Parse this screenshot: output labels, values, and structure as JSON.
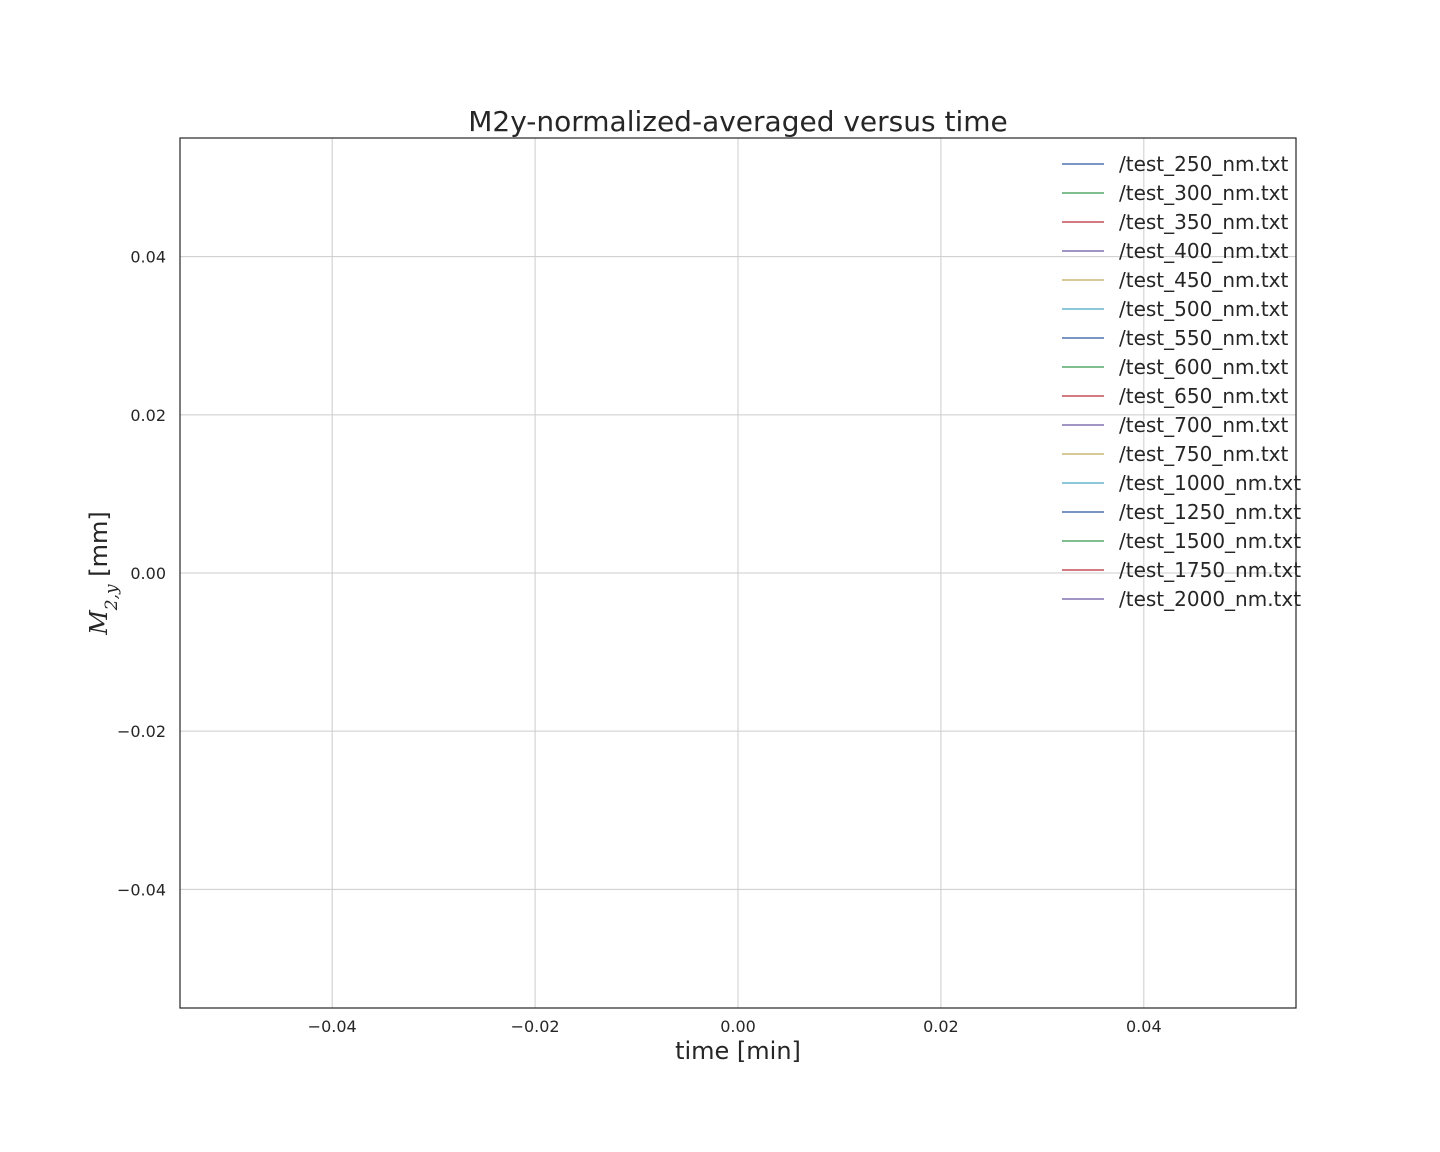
{
  "chart_data": {
    "type": "line",
    "title": "M2y-normalized-averaged versus time",
    "xlabel": "time [min]",
    "ylabel": {
      "symbol": "M",
      "subscript": "2,y",
      "unit": " [mm]"
    },
    "xlim": [
      -0.055,
      0.055
    ],
    "ylim": [
      -0.055,
      0.055
    ],
    "xticks": [
      -0.04,
      -0.02,
      0.0,
      0.02,
      0.04
    ],
    "yticks": [
      -0.04,
      -0.02,
      0.0,
      0.02,
      0.04
    ],
    "xtick_labels": [
      "−0.04",
      "−0.02",
      "0.00",
      "0.02",
      "0.04"
    ],
    "ytick_labels": [
      "−0.04",
      "−0.02",
      "0.00",
      "0.02",
      "0.04"
    ],
    "grid": true,
    "legend_position": "top-right",
    "series": [
      {
        "name": "/test_250_nm.txt",
        "color": "#4c72b0",
        "x": [],
        "y": []
      },
      {
        "name": "/test_300_nm.txt",
        "color": "#55a868",
        "x": [],
        "y": []
      },
      {
        "name": "/test_350_nm.txt",
        "color": "#c44e52",
        "x": [],
        "y": []
      },
      {
        "name": "/test_400_nm.txt",
        "color": "#8172b2",
        "x": [],
        "y": []
      },
      {
        "name": "/test_450_nm.txt",
        "color": "#ccb974",
        "x": [],
        "y": []
      },
      {
        "name": "/test_500_nm.txt",
        "color": "#64b5cd",
        "x": [],
        "y": []
      },
      {
        "name": "/test_550_nm.txt",
        "color": "#4c72b0",
        "x": [],
        "y": []
      },
      {
        "name": "/test_600_nm.txt",
        "color": "#55a868",
        "x": [],
        "y": []
      },
      {
        "name": "/test_650_nm.txt",
        "color": "#c44e52",
        "x": [],
        "y": []
      },
      {
        "name": "/test_700_nm.txt",
        "color": "#8172b2",
        "x": [],
        "y": []
      },
      {
        "name": "/test_750_nm.txt",
        "color": "#ccb974",
        "x": [],
        "y": []
      },
      {
        "name": "/test_1000_nm.txt",
        "color": "#64b5cd",
        "x": [],
        "y": []
      },
      {
        "name": "/test_1250_nm.txt",
        "color": "#4c72b0",
        "x": [],
        "y": []
      },
      {
        "name": "/test_1500_nm.txt",
        "color": "#55a868",
        "x": [],
        "y": []
      },
      {
        "name": "/test_1750_nm.txt",
        "color": "#c44e52",
        "x": [],
        "y": []
      },
      {
        "name": "/test_2000_nm.txt",
        "color": "#8172b2",
        "x": [],
        "y": []
      }
    ]
  }
}
